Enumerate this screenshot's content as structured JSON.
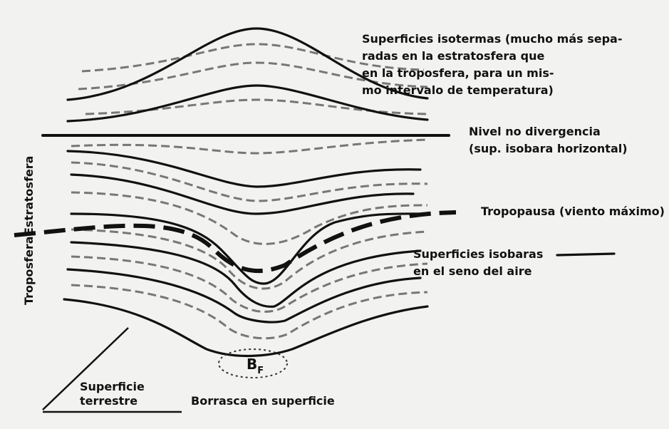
{
  "labels": {
    "isotermas": [
      "Superficies isotermas (mucho más sepa-",
      "radas en la estratosfera que",
      "en la troposfera, para un mis-",
      "mo intervalo de temperatura)"
    ],
    "nivel": [
      "Nivel no divergencia",
      "(sup. isobara horizontal)"
    ],
    "tropopausa": "Tropopausa (viento máximo)",
    "isobaras": [
      "Superficies isobaras",
      "en el seno del aire"
    ],
    "troposfera": "Troposfera",
    "estratosfera": "Estratosfera",
    "borrasca_symbol": {
      "main": "B",
      "sub": "F"
    },
    "superficie": [
      "Superficie",
      "terrestre"
    ],
    "borrasca": "Borrasca en superficie"
  }
}
